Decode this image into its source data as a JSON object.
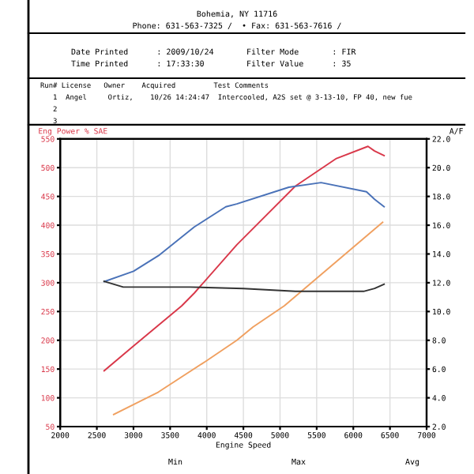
{
  "chart_data": {
    "type": "line",
    "xlabel": "Engine Speed",
    "ylabel": "Eng Power % SAE",
    "y2label": "A/F",
    "annotations": [
      "Bohemia, NY 11716",
      "Phone: 631-563-7325 /  • Fax: 631-563-7616 /",
      "Date Printed      : 2009/10/24",
      "Time Printed      : 17:33:30",
      "Filter Mode       : FIR",
      "Filter Value      : 35",
      "Run# License   Owner    Acquired         Test Comments",
      "   1  Angel     Ortiz,    10/26 14:24:47  Intercooled, A2S set @ 3-13-10, FP 40, new fue",
      "   2",
      "   3",
      "Min",
      "Max",
      "Avg"
    ],
    "series": [
      {
        "color": "#d9384a",
        "x": [
          2600,
          3000,
          3660,
          3830,
          4410,
          5210,
          5770,
          6200,
          6290,
          6420
        ],
        "values": [
          147,
          190,
          260,
          282,
          366,
          468,
          516,
          537,
          529,
          521
        ]
      },
      {
        "color": "#4a72b8",
        "x": [
          2600,
          3000,
          3340,
          3830,
          4260,
          4410,
          5120,
          5560,
          6180,
          6290,
          6420
        ],
        "values": [
          302,
          320,
          347,
          397,
          432,
          437,
          466,
          474,
          458,
          445,
          432
        ]
      },
      {
        "color": "#f0a060",
        "x": [
          2730,
          3340,
          3980,
          4410,
          4630,
          5060,
          6400
        ],
        "values": [
          71,
          110,
          163,
          200,
          223,
          260,
          405
        ]
      },
      {
        "color": "#333333",
        "axis": "y2",
        "x": [
          2600,
          2860,
          3770,
          4500,
          5210,
          6140,
          6290,
          6420
        ],
        "values": [
          12.1,
          11.7,
          11.7,
          11.6,
          11.4,
          11.4,
          11.6,
          11.9
        ]
      }
    ],
    "xlim": [
      2000,
      7000
    ],
    "xticks": [
      2000,
      2500,
      3000,
      3500,
      4000,
      4500,
      5000,
      5500,
      6000,
      6500,
      7000
    ],
    "ylim": [
      50,
      550
    ],
    "yticks": [
      50,
      100,
      150,
      200,
      250,
      300,
      350,
      400,
      450,
      500,
      550
    ],
    "y2lim": [
      2.0,
      22.0
    ],
    "y2ticks": [
      {
        "value": 2,
        "label": "2.0"
      },
      {
        "value": 4,
        "label": "4.0"
      },
      {
        "value": 6,
        "label": "6.0"
      },
      {
        "value": 8,
        "label": "8.0"
      },
      {
        "value": 10,
        "label": "10.0"
      },
      {
        "value": 12,
        "label": "12.0"
      },
      {
        "value": 14,
        "label": "14.0"
      },
      {
        "value": 16,
        "label": "16.0"
      },
      {
        "value": 18,
        "label": "18.0"
      },
      {
        "value": 20,
        "label": "20.0"
      },
      {
        "value": 22,
        "label": "22.0"
      }
    ],
    "grid": true,
    "legend": false
  }
}
